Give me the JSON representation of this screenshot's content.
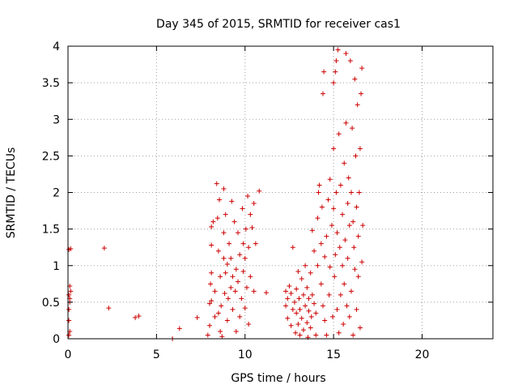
{
  "chart_data": {
    "type": "scatter",
    "title": "Day 345 of 2015, SRMTID for receiver cas1",
    "xlabel": "GPS time / hours",
    "ylabel": "SRMTID / TECUs",
    "xlim": [
      0,
      24
    ],
    "ylim": [
      0,
      4
    ],
    "xticks": [
      0,
      5,
      10,
      15,
      20
    ],
    "xtick_labels": [
      "0",
      "5",
      "10",
      "15",
      "20"
    ],
    "yticks": [
      0,
      0.5,
      1,
      1.5,
      2,
      2.5,
      3,
      3.5,
      4
    ],
    "ytick_labels": [
      "0",
      "0.5",
      "1",
      "1.5",
      "2",
      "2.5",
      "3",
      "3.5",
      "4"
    ],
    "grid": true,
    "marker": "+",
    "color": "#cc0000",
    "series": [
      {
        "name": "SRMTID",
        "points": [
          [
            0.05,
            0.05
          ],
          [
            0.1,
            0.1
          ],
          [
            0.05,
            0.25
          ],
          [
            0.05,
            0.4
          ],
          [
            0.1,
            0.5
          ],
          [
            0.1,
            0.55
          ],
          [
            0.05,
            0.6
          ],
          [
            0.15,
            0.65
          ],
          [
            0.1,
            0.72
          ],
          [
            0.05,
            1.22
          ],
          [
            0.15,
            1.23
          ],
          [
            2.05,
            1.24
          ],
          [
            2.3,
            0.42
          ],
          [
            3.8,
            0.29
          ],
          [
            4.0,
            0.31
          ],
          [
            5.9,
            0.0
          ],
          [
            6.3,
            0.14
          ],
          [
            7.3,
            0.29
          ],
          [
            7.9,
            0.05
          ],
          [
            8.0,
            0.18
          ],
          [
            8.0,
            0.48
          ],
          [
            8.1,
            0.52
          ],
          [
            8.05,
            0.75
          ],
          [
            8.1,
            0.9
          ],
          [
            8.1,
            1.28
          ],
          [
            8.1,
            1.53
          ],
          [
            8.2,
            1.6
          ],
          [
            8.3,
            0.3
          ],
          [
            8.3,
            0.65
          ],
          [
            8.4,
            2.12
          ],
          [
            8.45,
            1.65
          ],
          [
            8.5,
            0.35
          ],
          [
            8.5,
            1.2
          ],
          [
            8.55,
            1.9
          ],
          [
            8.6,
            0.1
          ],
          [
            8.6,
            0.85
          ],
          [
            8.65,
            0.45
          ],
          [
            8.7,
            0.03
          ],
          [
            8.8,
            2.05
          ],
          [
            8.8,
            1.45
          ],
          [
            8.8,
            1.1
          ],
          [
            8.85,
            0.62
          ],
          [
            8.9,
            1.7
          ],
          [
            8.9,
            0.9
          ],
          [
            9.0,
            0.25
          ],
          [
            9.0,
            1.02
          ],
          [
            9.05,
            0.55
          ],
          [
            9.1,
            1.3
          ],
          [
            9.2,
            1.1
          ],
          [
            9.2,
            0.7
          ],
          [
            9.25,
            1.88
          ],
          [
            9.3,
            0.4
          ],
          [
            9.3,
            0.85
          ],
          [
            9.4,
            1.6
          ],
          [
            9.45,
            0.65
          ],
          [
            9.5,
            0.1
          ],
          [
            9.5,
            0.95
          ],
          [
            9.6,
            1.45
          ],
          [
            9.6,
            0.78
          ],
          [
            9.7,
            0.3
          ],
          [
            9.7,
            1.15
          ],
          [
            9.8,
            0.55
          ],
          [
            9.85,
            1.78
          ],
          [
            9.9,
            1.3
          ],
          [
            9.9,
            0.92
          ],
          [
            10.0,
            1.1
          ],
          [
            10.0,
            0.42
          ],
          [
            10.05,
            1.5
          ],
          [
            10.1,
            0.7
          ],
          [
            10.15,
            1.95
          ],
          [
            10.2,
            1.25
          ],
          [
            10.2,
            0.2
          ],
          [
            10.3,
            0.85
          ],
          [
            10.3,
            1.7
          ],
          [
            10.4,
            1.52
          ],
          [
            10.5,
            1.85
          ],
          [
            10.5,
            0.65
          ],
          [
            10.6,
            1.3
          ],
          [
            10.8,
            2.02
          ],
          [
            11.2,
            0.63
          ],
          [
            12.3,
            0.65
          ],
          [
            12.3,
            0.45
          ],
          [
            12.4,
            0.28
          ],
          [
            12.4,
            0.55
          ],
          [
            12.5,
            0.72
          ],
          [
            12.6,
            0.18
          ],
          [
            12.6,
            0.62
          ],
          [
            12.7,
            1.25
          ],
          [
            12.7,
            0.4
          ],
          [
            12.8,
            0.5
          ],
          [
            12.85,
            0.08
          ],
          [
            12.9,
            0.35
          ],
          [
            12.9,
            0.68
          ],
          [
            13.0,
            0.2
          ],
          [
            13.0,
            0.92
          ],
          [
            13.05,
            0.55
          ],
          [
            13.1,
            0.05
          ],
          [
            13.1,
            0.4
          ],
          [
            13.2,
            0.82
          ],
          [
            13.2,
            0.28
          ],
          [
            13.3,
            0.6
          ],
          [
            13.3,
            0.12
          ],
          [
            13.4,
            0.45
          ],
          [
            13.4,
            1.0
          ],
          [
            13.5,
            0.22
          ],
          [
            13.5,
            0.7
          ],
          [
            13.55,
            0.02
          ],
          [
            13.6,
            0.38
          ],
          [
            13.6,
            0.55
          ],
          [
            13.7,
            0.15
          ],
          [
            13.7,
            0.9
          ],
          [
            13.75,
            0.3
          ],
          [
            13.8,
            1.48
          ],
          [
            13.8,
            0.6
          ],
          [
            13.9,
            0.48
          ],
          [
            13.9,
            1.2
          ],
          [
            14.0,
            0.35
          ],
          [
            14.0,
            0.05
          ],
          [
            14.1,
            1.0
          ],
          [
            14.1,
            1.65
          ],
          [
            14.15,
            2.0
          ],
          [
            14.2,
            2.1
          ],
          [
            14.3,
            0.75
          ],
          [
            14.3,
            1.3
          ],
          [
            14.35,
            1.8
          ],
          [
            14.4,
            0.45
          ],
          [
            14.4,
            3.35
          ],
          [
            14.45,
            3.65
          ],
          [
            14.5,
            0.25
          ],
          [
            14.5,
            1.12
          ],
          [
            14.6,
            1.4
          ],
          [
            14.6,
            0.05
          ],
          [
            14.7,
            1.9
          ],
          [
            14.75,
            0.6
          ],
          [
            14.8,
            2.18
          ],
          [
            14.8,
            0.98
          ],
          [
            14.9,
            1.55
          ],
          [
            14.95,
            0.3
          ],
          [
            15.0,
            1.78
          ],
          [
            15.0,
            2.6
          ],
          [
            15.0,
            3.5
          ],
          [
            15.05,
            0.85
          ],
          [
            15.1,
            1.15
          ],
          [
            15.1,
            3.65
          ],
          [
            15.15,
            3.8
          ],
          [
            15.15,
            2.0
          ],
          [
            15.2,
            0.4
          ],
          [
            15.2,
            1.45
          ],
          [
            15.25,
            3.95
          ],
          [
            15.3,
            2.8
          ],
          [
            15.3,
            0.08
          ],
          [
            15.35,
            1.25
          ],
          [
            15.4,
            2.1
          ],
          [
            15.4,
            0.6
          ],
          [
            15.5,
            1.0
          ],
          [
            15.5,
            1.7
          ],
          [
            15.55,
            0.2
          ],
          [
            15.6,
            2.4
          ],
          [
            15.6,
            0.75
          ],
          [
            15.65,
            1.35
          ],
          [
            15.7,
            3.9
          ],
          [
            15.7,
            2.95
          ],
          [
            15.75,
            0.45
          ],
          [
            15.8,
            1.85
          ],
          [
            15.8,
            1.1
          ],
          [
            15.85,
            2.2
          ],
          [
            15.9,
            0.3
          ],
          [
            15.9,
            1.55
          ],
          [
            15.95,
            3.8
          ],
          [
            16.0,
            2.0
          ],
          [
            16.0,
            0.65
          ],
          [
            16.05,
            2.88
          ],
          [
            16.1,
            1.6
          ],
          [
            16.1,
            0.05
          ],
          [
            16.15,
            1.25
          ],
          [
            16.2,
            0.95
          ],
          [
            16.2,
            3.55
          ],
          [
            16.25,
            2.5
          ],
          [
            16.3,
            1.8
          ],
          [
            16.3,
            0.4
          ],
          [
            16.35,
            3.2
          ],
          [
            16.4,
            1.4
          ],
          [
            16.4,
            0.85
          ],
          [
            16.45,
            2.0
          ],
          [
            16.5,
            2.6
          ],
          [
            16.5,
            0.15
          ],
          [
            16.55,
            3.35
          ],
          [
            16.6,
            3.7
          ],
          [
            16.6,
            1.05
          ],
          [
            16.65,
            1.55
          ]
        ]
      }
    ]
  }
}
